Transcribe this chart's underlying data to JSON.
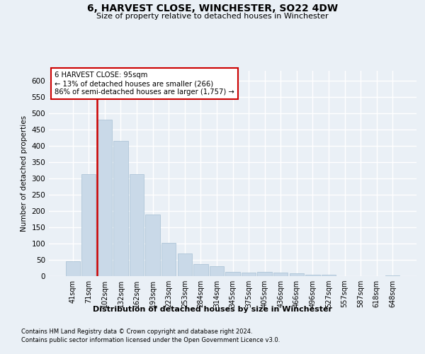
{
  "title": "6, HARVEST CLOSE, WINCHESTER, SO22 4DW",
  "subtitle": "Size of property relative to detached houses in Winchester",
  "xlabel": "Distribution of detached houses by size in Winchester",
  "ylabel": "Number of detached properties",
  "categories": [
    "41sqm",
    "71sqm",
    "102sqm",
    "132sqm",
    "162sqm",
    "193sqm",
    "223sqm",
    "253sqm",
    "284sqm",
    "314sqm",
    "345sqm",
    "375sqm",
    "405sqm",
    "436sqm",
    "466sqm",
    "496sqm",
    "527sqm",
    "557sqm",
    "587sqm",
    "618sqm",
    "648sqm"
  ],
  "values": [
    45,
    312,
    480,
    415,
    313,
    190,
    103,
    70,
    38,
    30,
    14,
    11,
    14,
    11,
    8,
    5,
    4,
    1,
    1,
    1,
    3
  ],
  "bar_color": "#c9d9e8",
  "bar_edge_color": "#afc6d8",
  "marker_label": "6 HARVEST CLOSE: 95sqm",
  "marker_line1": "← 13% of detached houses are smaller (266)",
  "marker_line2": "86% of semi-detached houses are larger (1,757) →",
  "ylim": [
    0,
    630
  ],
  "yticks": [
    0,
    50,
    100,
    150,
    200,
    250,
    300,
    350,
    400,
    450,
    500,
    550,
    600
  ],
  "bg_color": "#eaf0f6",
  "plot_bg_color": "#eaf0f6",
  "grid_color": "#ffffff",
  "red_line_color": "#cc0000",
  "annotation_border_color": "#cc0000",
  "footer_line1": "Contains HM Land Registry data © Crown copyright and database right 2024.",
  "footer_line2": "Contains public sector information licensed under the Open Government Licence v3.0."
}
